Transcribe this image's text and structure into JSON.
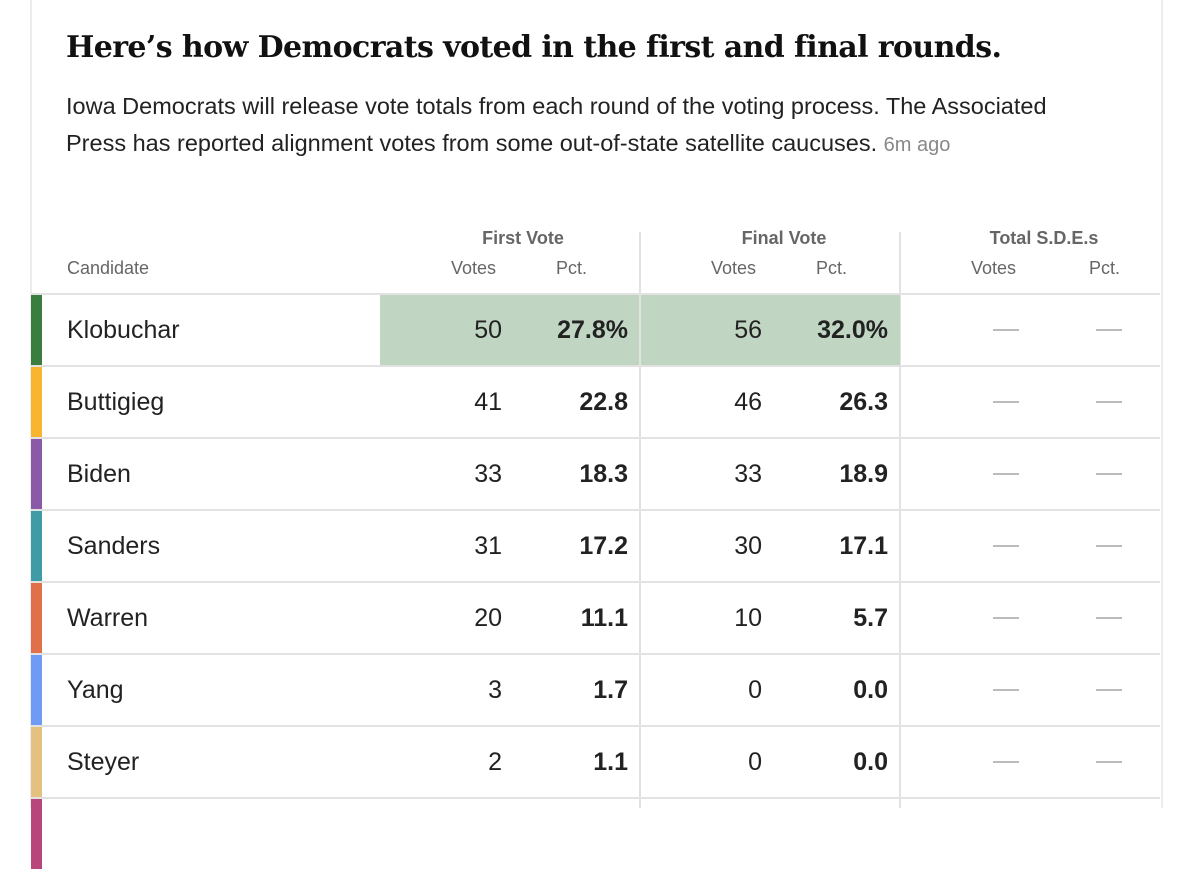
{
  "title": "Here’s how Democrats voted in the first and final rounds.",
  "subtitle": "Iowa Democrats will release vote totals from each round of the voting process. The Associated Press has reported alignment votes from some out-of-state satellite caucuses.",
  "timestamp": "6m ago",
  "headers": {
    "candidate": "Candidate",
    "first": "First Vote",
    "final": "Final Vote",
    "total": "Total S.D.E.s",
    "votes": "Votes",
    "pct": "Pct."
  },
  "highlight_color": "#c0d6c3",
  "rows": [
    {
      "name": "Klobuchar",
      "color": "#3a7d3f",
      "first_votes": "50",
      "first_pct": "27.8%",
      "final_votes": "56",
      "final_pct": "32.0%",
      "leader": true
    },
    {
      "name": "Buttigieg",
      "color": "#f9b52f",
      "first_votes": "41",
      "first_pct": "22.8",
      "final_votes": "46",
      "final_pct": "26.3"
    },
    {
      "name": "Biden",
      "color": "#8a5aa8",
      "first_votes": "33",
      "first_pct": "18.3",
      "final_votes": "33",
      "final_pct": "18.9"
    },
    {
      "name": "Sanders",
      "color": "#3f9ca6",
      "first_votes": "31",
      "first_pct": "17.2",
      "final_votes": "30",
      "final_pct": "17.1"
    },
    {
      "name": "Warren",
      "color": "#e0704a",
      "first_votes": "20",
      "first_pct": "11.1",
      "final_votes": "10",
      "final_pct": "5.7"
    },
    {
      "name": "Yang",
      "color": "#6f9bf5",
      "first_votes": "3",
      "first_pct": "1.7",
      "final_votes": "0",
      "final_pct": "0.0"
    },
    {
      "name": "Steyer",
      "color": "#e5c17f",
      "first_votes": "2",
      "first_pct": "1.1",
      "final_votes": "0",
      "final_pct": "0.0"
    }
  ],
  "partial_row_color": "#b8467c"
}
